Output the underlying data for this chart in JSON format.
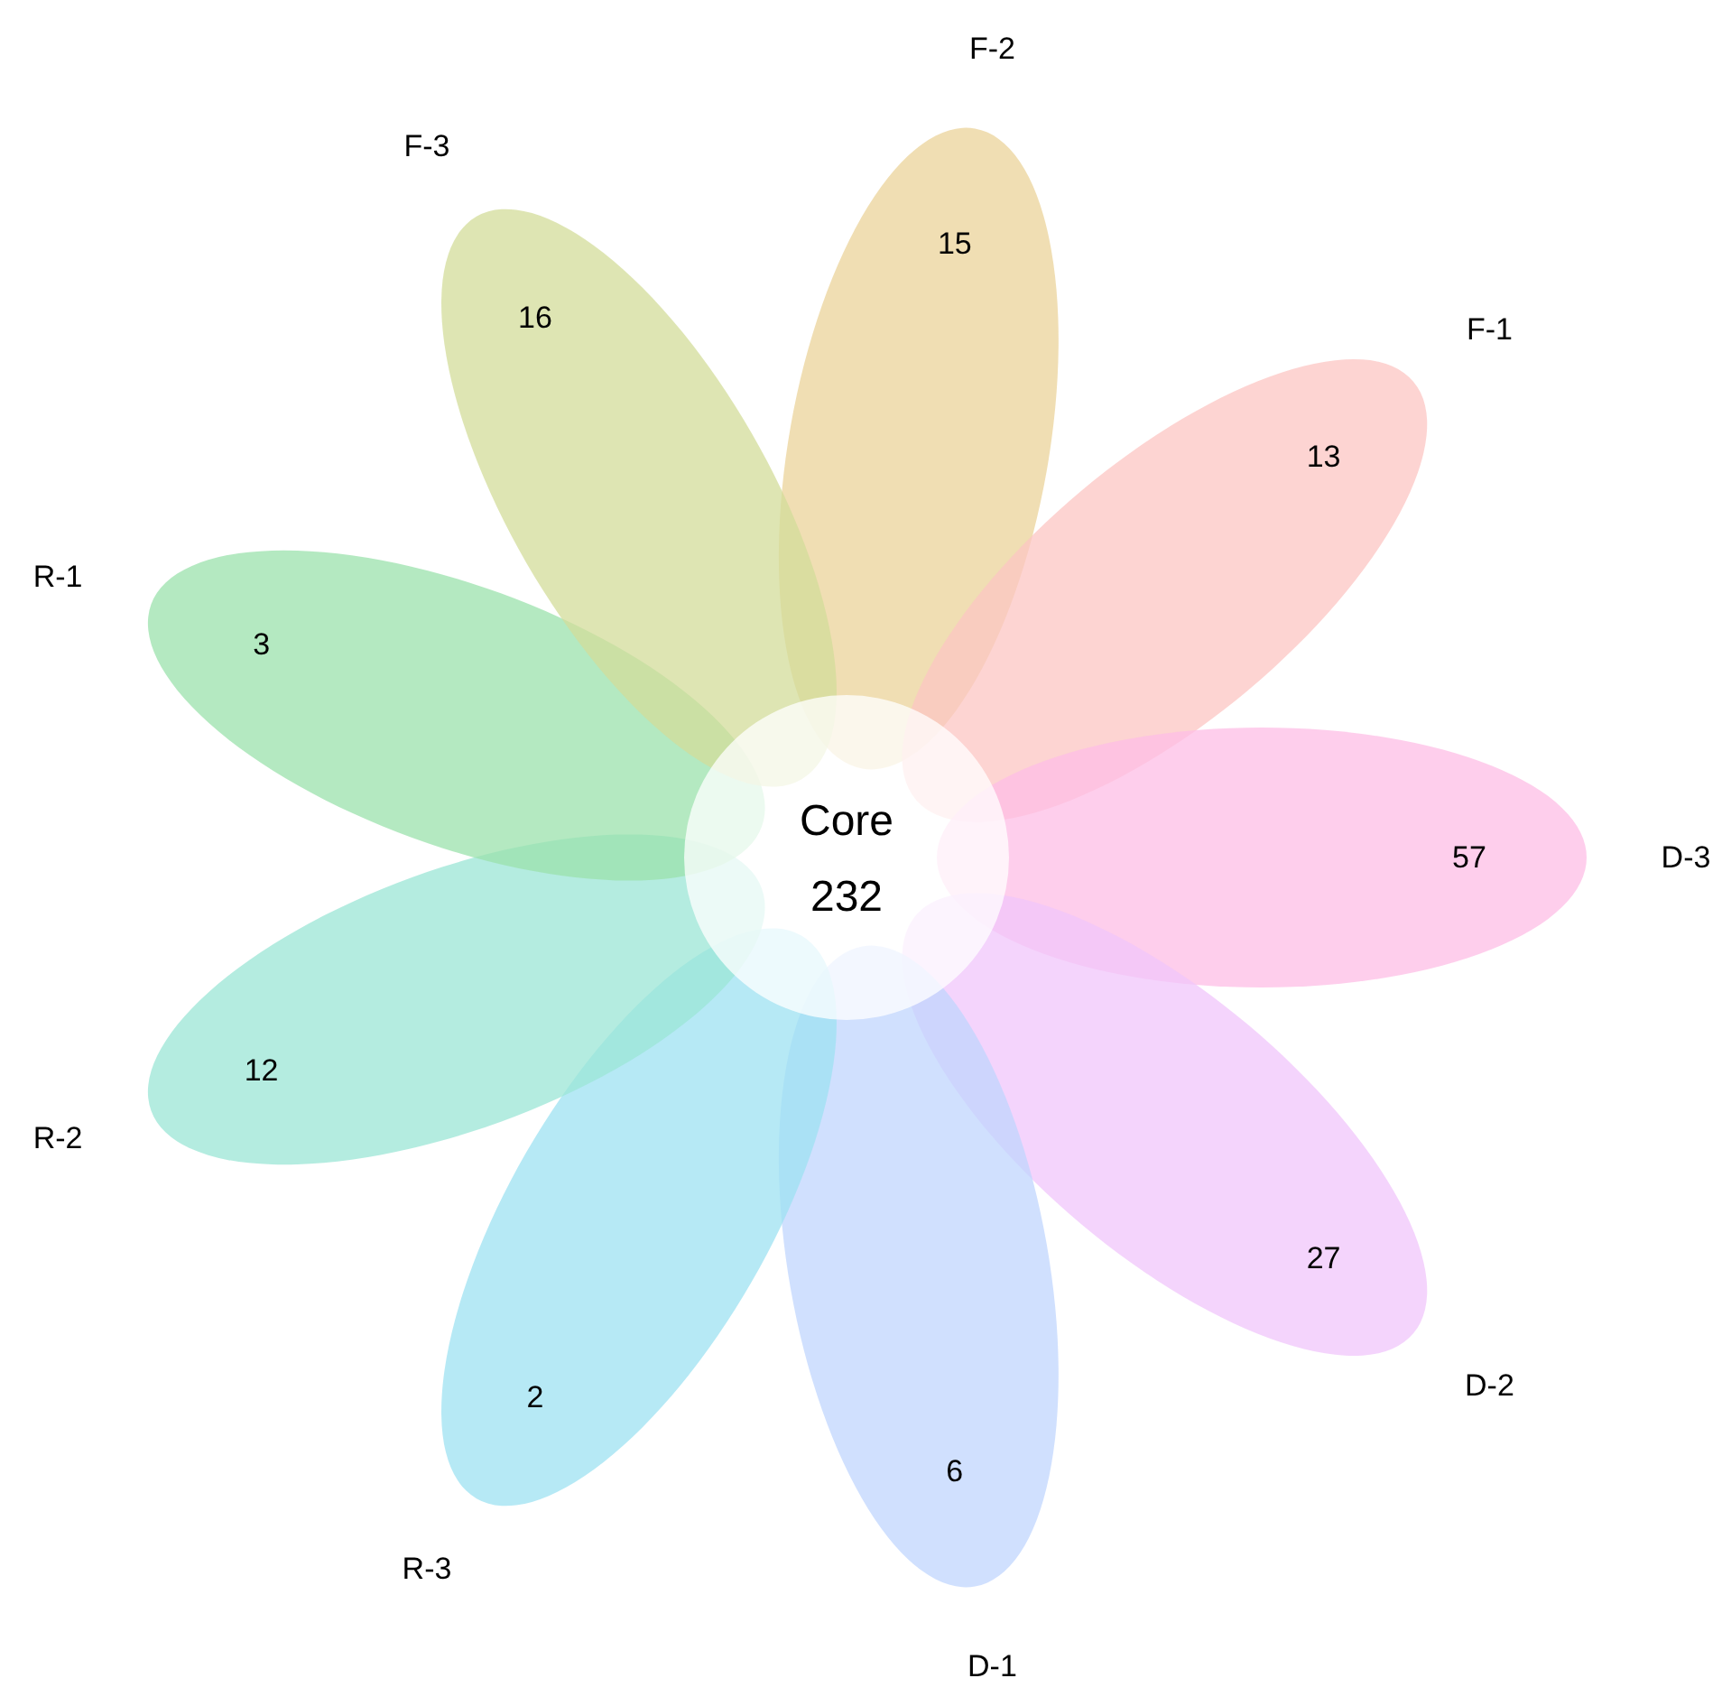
{
  "chart_data": {
    "type": "other",
    "categories": [
      "F-2",
      "F-1",
      "D-3",
      "D-2",
      "D-1",
      "R-3",
      "R-2",
      "R-1",
      "F-3",
      "Core"
    ],
    "values": [
      15,
      13,
      57,
      27,
      6,
      2,
      12,
      3,
      16,
      232
    ],
    "data_labels": true,
    "colors": [
      "#ebd39a",
      "#fcc5c3",
      "#fdbde6",
      "#f0c6fb",
      "#c0d5fd",
      "#9ee2f1",
      "#9be6d6",
      "#9be2ac",
      "#d3dc9a",
      "#ffffff"
    ]
  }
}
